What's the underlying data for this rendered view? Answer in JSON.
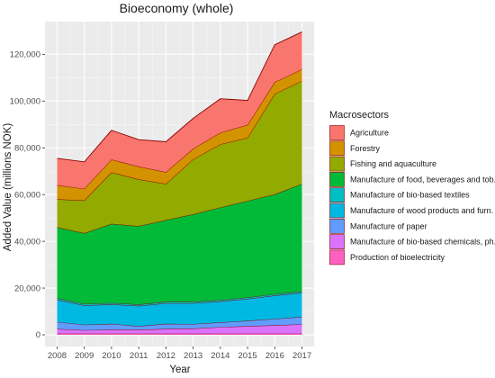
{
  "chart_data": {
    "type": "area",
    "stacked": true,
    "title": "Bioeconomy (whole)",
    "xlabel": "Year",
    "ylabel": "Added Value (millions NOK)",
    "x": [
      2008,
      2009,
      2010,
      2011,
      2012,
      2013,
      2014,
      2015,
      2016,
      2017
    ],
    "ylim": [
      -5000,
      134000
    ],
    "yticks": [
      0,
      20000,
      40000,
      60000,
      80000,
      100000,
      120000
    ],
    "ytick_labels": [
      "0",
      "20,000",
      "40,000",
      "60,000",
      "80,000",
      "100,000",
      "120,000"
    ],
    "xtick_labels": [
      "2008",
      "2009",
      "2010",
      "2011",
      "2012",
      "2013",
      "2014",
      "2015",
      "2016",
      "2017"
    ],
    "grid": true,
    "background": "#ebebeb",
    "legend": {
      "title": "Macrosectors",
      "placement": "right"
    },
    "series": [
      {
        "name": "Production of bioelectricity",
        "color": "#ff61c3",
        "values": [
          500,
          500,
          500,
          500,
          500,
          500,
          500,
          500,
          500,
          500
        ]
      },
      {
        "name": "Manufacture of bio-based chemicals, ph.",
        "color": "#db72fb",
        "values": [
          2000,
          1500,
          1700,
          1700,
          2000,
          2200,
          2800,
          3200,
          3600,
          4000
        ]
      },
      {
        "name": "Manufacture of paper",
        "color": "#619cff",
        "values": [
          3000,
          2300,
          2500,
          1500,
          2200,
          1900,
          2000,
          2300,
          2700,
          3200
        ]
      },
      {
        "name": "Manufacture of wood products and furn.",
        "color": "#00b9e3",
        "values": [
          9500,
          8300,
          8300,
          8700,
          8800,
          8900,
          9000,
          9400,
          10000,
          10300
        ]
      },
      {
        "name": "Manufacture of bio-based textiles",
        "color": "#00bfc4",
        "values": [
          700,
          600,
          600,
          600,
          600,
          600,
          600,
          600,
          600,
          600
        ]
      },
      {
        "name": "Manufacture of food, beverages and tob.",
        "color": "#00ba38",
        "values": [
          30300,
          30300,
          33900,
          33500,
          35000,
          37500,
          39600,
          41300,
          42700,
          46000
        ]
      },
      {
        "name": "Fishing and aquaculture",
        "color": "#93aa00",
        "values": [
          12000,
          14000,
          22000,
          20000,
          15500,
          23500,
          27000,
          27000,
          43000,
          44000
        ]
      },
      {
        "name": "Forestry",
        "color": "#d39200",
        "values": [
          6000,
          5000,
          5500,
          5500,
          5000,
          4500,
          5000,
          5500,
          5000,
          5000
        ]
      },
      {
        "name": "Agriculture",
        "color": "#f8766d",
        "values": [
          11500,
          11500,
          12500,
          11500,
          13000,
          13000,
          14500,
          10500,
          16000,
          16000
        ]
      }
    ]
  }
}
